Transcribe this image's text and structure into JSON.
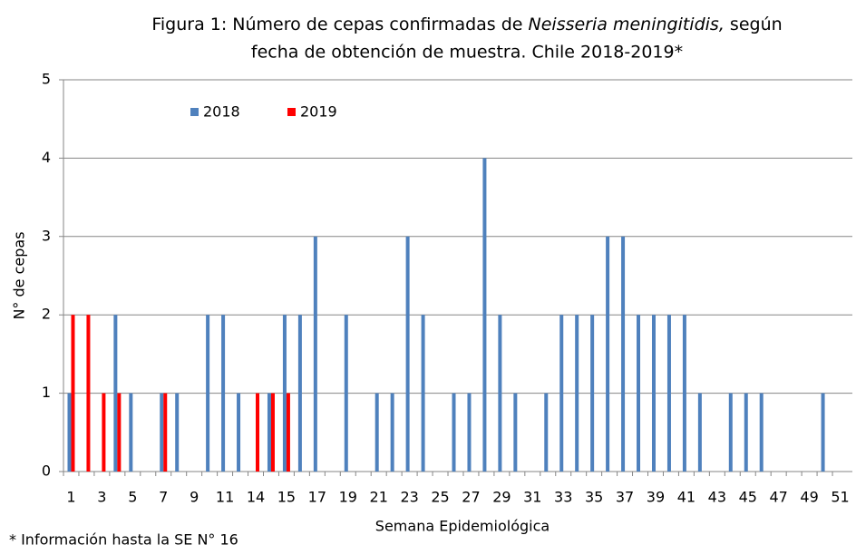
{
  "chart_data": {
    "type": "bar",
    "title": [
      "Figura 1: Número de cepas confirmadas de ",
      "Neisseria meningitidis,",
      " según",
      "fecha de obtención de muestra. Chile 2018-2019*"
    ],
    "x_label": "Semana Epidemiológica",
    "y_label": "N° de cepas",
    "footnote": "* Información hasta la SE N° 16",
    "categories": [
      "1",
      null,
      "3",
      null,
      "5",
      null,
      "7",
      null,
      "9",
      null,
      "11",
      null,
      "14",
      null,
      "15",
      null,
      "17",
      null,
      "19",
      null,
      "21",
      null,
      "23",
      null,
      "25",
      null,
      "27",
      null,
      "29",
      null,
      "31",
      null,
      "33",
      null,
      "35",
      null,
      "37",
      null,
      "39",
      null,
      "41",
      null,
      "43",
      null,
      "45",
      null,
      "47",
      null,
      "49",
      null,
      "51"
    ],
    "series": [
      {
        "name": "2018",
        "color": "#4f81bd",
        "values": [
          1,
          0,
          0,
          2,
          1,
          0,
          1,
          1,
          0,
          2,
          2,
          1,
          0,
          1,
          2,
          2,
          3,
          0,
          2,
          0,
          1,
          1,
          3,
          2,
          0,
          1,
          1,
          4,
          2,
          1,
          0,
          1,
          2,
          2,
          2,
          3,
          3,
          2,
          2,
          2,
          2,
          1,
          0,
          1,
          1,
          1,
          0,
          0,
          0,
          1,
          0
        ]
      },
      {
        "name": "2019",
        "color": "#ff0000",
        "values": [
          2,
          2,
          1,
          1,
          0,
          0,
          1,
          0,
          0,
          0,
          0,
          0,
          1,
          1,
          1,
          0,
          0,
          0,
          0,
          0,
          0,
          0,
          0,
          0,
          0,
          0,
          0,
          0,
          0,
          0,
          0,
          0,
          0,
          0,
          0,
          0,
          0,
          0,
          0,
          0,
          0,
          0,
          0,
          0,
          0,
          0,
          0,
          0,
          0,
          0,
          0
        ]
      }
    ],
    "ylim": [
      0,
      5
    ],
    "yticks": [
      0,
      1,
      2,
      3,
      4,
      5
    ],
    "grid": true,
    "legend": "top-left"
  }
}
